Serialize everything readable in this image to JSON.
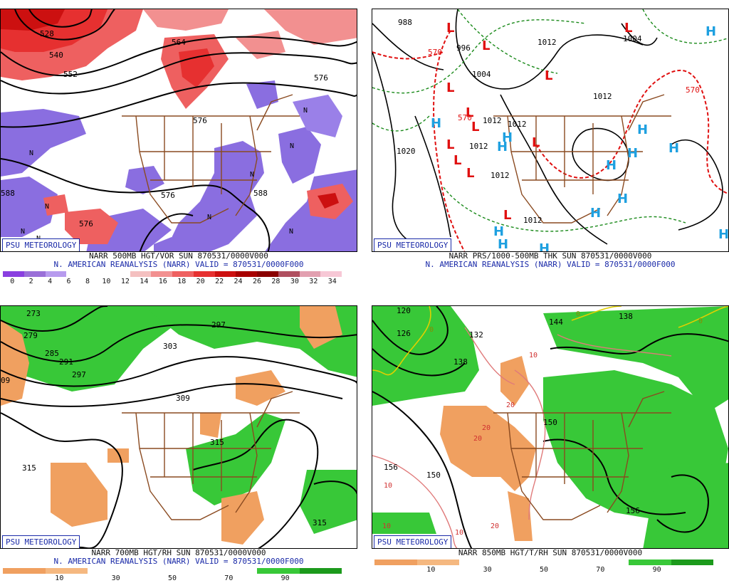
{
  "panels": [
    {
      "badge": "PSU METEOROLOGY",
      "caption1": "NARR 500MB HGT/VOR SUN 870531/0000V000",
      "caption2": "N. AMERICAN REANALYSIS (NARR) VALID = 870531/0000F000",
      "scale": {
        "colors": [
          "#8a3fe0",
          "#9a6fd8",
          "#b79bee",
          "#ffffff",
          "#ffffff",
          "#ffffff",
          "#f4c0c0",
          "#f29090",
          "#ee6060",
          "#e63030",
          "#cc1010",
          "#a80000",
          "#8a0000",
          "#b05060",
          "#e2a0b0",
          "#f7c8d6"
        ],
        "labels": [
          "0",
          "2",
          "4",
          "6",
          "8",
          "10",
          "12",
          "14",
          "16",
          "18",
          "20",
          "22",
          "24",
          "26",
          "28",
          "30",
          "32",
          "34"
        ]
      },
      "contour_labels": [
        "528",
        "540",
        "552",
        "564",
        "576",
        "576",
        "576",
        "588",
        "588",
        "576"
      ],
      "letters": [
        "N",
        "N",
        "N",
        "N",
        "N",
        "N",
        "N",
        "N",
        "N"
      ]
    },
    {
      "badge": "PSU METEOROLOGY",
      "caption1": "NARR PRS/1000-500MB THK SUN 870531/0000V000",
      "caption2": "N. AMERICAN REANALYSIS (NARR) VALID = 870531/0000F000",
      "contour_labels": [
        "988",
        "996",
        "1004",
        "1012",
        "1012",
        "1012",
        "1020",
        "1004",
        "1012",
        "1012",
        "1012",
        "1012",
        "570",
        "570",
        "570"
      ],
      "lows": [
        "L",
        "L",
        "L",
        "L",
        "L",
        "L",
        "L",
        "L",
        "L",
        "L",
        "L",
        "L"
      ],
      "highs": [
        "H",
        "H",
        "H",
        "H",
        "H",
        "H",
        "H",
        "H",
        "H",
        "H",
        "H",
        "H",
        "H",
        "H"
      ]
    },
    {
      "badge": "PSU METEOROLOGY",
      "caption1": "NARR 700MB HGT/RH SUN 870531/0000V000",
      "caption2": "N. AMERICAN REANALYSIS (NARR) VALID = 870531/0000F000",
      "scale": {
        "colors": [
          "#f0a060",
          "#f5b880",
          "#ffffff",
          "#ffffff",
          "#ffffff",
          "#ffffff",
          "#38c838",
          "#1c9a1c"
        ],
        "labels": [
          "10",
          "30",
          "50",
          "70",
          "90"
        ]
      },
      "contour_labels": [
        "273",
        "279",
        "285",
        "291",
        "297",
        "297",
        "303",
        "309",
        "315",
        "315",
        "315",
        "09"
      ]
    },
    {
      "badge": "PSU METEOROLOGY",
      "caption1": "NARR 850MB HGT/T/RH SUN 870531/0000V000",
      "caption2": "",
      "scale": {
        "colors": [
          "#f0a060",
          "#f5b880",
          "#ffffff",
          "#ffffff",
          "#ffffff",
          "#ffffff",
          "#38c838",
          "#1c9a1c"
        ],
        "labels": [
          "10",
          "30",
          "50",
          "70",
          "90"
        ]
      },
      "contour_labels": [
        "120",
        "126",
        "132",
        "138",
        "138",
        "144",
        "150",
        "150",
        "156",
        "156"
      ],
      "temp_labels": [
        "0",
        "0",
        "0",
        "10",
        "10",
        "10",
        "10",
        "20",
        "20",
        "20",
        "20"
      ]
    }
  ]
}
